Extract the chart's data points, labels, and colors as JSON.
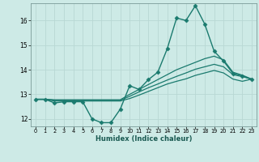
{
  "title": "",
  "xlabel": "Humidex (Indice chaleur)",
  "ylabel": "",
  "bg_color": "#cdeae6",
  "grid_color": "#b8d8d4",
  "line_color": "#1a7a6e",
  "xlim": [
    -0.5,
    23.5
  ],
  "ylim": [
    11.7,
    16.7
  ],
  "xticks": [
    0,
    1,
    2,
    3,
    4,
    5,
    6,
    7,
    8,
    9,
    10,
    11,
    12,
    13,
    14,
    15,
    16,
    17,
    18,
    19,
    20,
    21,
    22,
    23
  ],
  "yticks": [
    12,
    13,
    14,
    15,
    16
  ],
  "series": [
    {
      "x": [
        0,
        1,
        2,
        3,
        4,
        5,
        6,
        7,
        8,
        9,
        10,
        11,
        12,
        13,
        14,
        15,
        16,
        17,
        18,
        19,
        20,
        21,
        22,
        23
      ],
      "y": [
        12.8,
        12.8,
        12.65,
        12.7,
        12.7,
        12.7,
        12.0,
        11.85,
        11.85,
        12.4,
        13.35,
        13.2,
        13.6,
        13.9,
        14.85,
        16.1,
        16.0,
        16.6,
        15.85,
        14.75,
        14.35,
        13.85,
        13.75,
        13.6
      ],
      "marker": "D",
      "markersize": 2.5,
      "lw": 1.0
    },
    {
      "x": [
        0,
        1,
        2,
        3,
        4,
        5,
        6,
        7,
        8,
        9,
        10,
        11,
        12,
        13,
        14,
        15,
        16,
        17,
        18,
        19,
        20,
        21,
        22,
        23
      ],
      "y": [
        12.8,
        12.8,
        12.78,
        12.78,
        12.78,
        12.78,
        12.78,
        12.78,
        12.78,
        12.78,
        13.0,
        13.2,
        13.4,
        13.6,
        13.8,
        14.0,
        14.15,
        14.3,
        14.45,
        14.55,
        14.4,
        13.9,
        13.78,
        13.62
      ],
      "marker": null,
      "markersize": 0,
      "lw": 0.9
    },
    {
      "x": [
        0,
        1,
        2,
        3,
        4,
        5,
        6,
        7,
        8,
        9,
        10,
        11,
        12,
        13,
        14,
        15,
        16,
        17,
        18,
        19,
        20,
        21,
        22,
        23
      ],
      "y": [
        12.8,
        12.8,
        12.76,
        12.76,
        12.76,
        12.76,
        12.76,
        12.76,
        12.76,
        12.76,
        12.92,
        13.1,
        13.27,
        13.42,
        13.58,
        13.73,
        13.87,
        14.02,
        14.12,
        14.22,
        14.12,
        13.8,
        13.72,
        13.62
      ],
      "marker": null,
      "markersize": 0,
      "lw": 0.9
    },
    {
      "x": [
        0,
        1,
        2,
        3,
        4,
        5,
        6,
        7,
        8,
        9,
        10,
        11,
        12,
        13,
        14,
        15,
        16,
        17,
        18,
        19,
        20,
        21,
        22,
        23
      ],
      "y": [
        12.8,
        12.8,
        12.73,
        12.73,
        12.73,
        12.73,
        12.73,
        12.73,
        12.73,
        12.73,
        12.83,
        12.97,
        13.12,
        13.27,
        13.42,
        13.53,
        13.63,
        13.77,
        13.87,
        13.97,
        13.87,
        13.62,
        13.53,
        13.62
      ],
      "marker": null,
      "markersize": 0,
      "lw": 0.9
    }
  ]
}
